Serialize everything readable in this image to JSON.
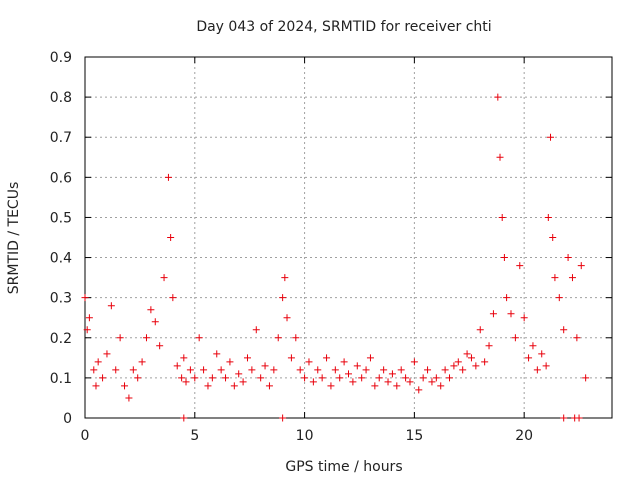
{
  "chart_data": {
    "type": "scatter",
    "title": "Day 043 of 2024, SRMTID for receiver chti",
    "xlabel": "GPS time / hours",
    "ylabel": "SRMTID / TECUs",
    "xlim": [
      0,
      24
    ],
    "ylim": [
      0,
      0.9
    ],
    "xticks": [
      0,
      5,
      10,
      15,
      20
    ],
    "xtick_labels": [
      "0",
      "5",
      "10",
      "15",
      "20"
    ],
    "yticks": [
      0,
      0.1,
      0.2,
      0.3,
      0.4,
      0.5,
      0.6,
      0.7,
      0.8,
      0.9
    ],
    "ytick_labels": [
      "0",
      "0.1",
      "0.2",
      "0.3",
      "0.4",
      "0.5",
      "0.6",
      "0.7",
      "0.8",
      "0.9"
    ],
    "grid": true,
    "marker": "+",
    "color": "#e8000b",
    "series": [
      {
        "name": "SRMTID",
        "x": [
          0.0,
          0.1,
          0.2,
          0.4,
          0.5,
          0.6,
          0.8,
          1.0,
          1.2,
          1.4,
          1.6,
          1.8,
          2.0,
          2.2,
          2.4,
          2.6,
          2.8,
          3.0,
          3.2,
          3.4,
          3.6,
          3.8,
          3.9,
          4.0,
          4.2,
          4.4,
          4.5,
          4.6,
          4.8,
          5.0,
          5.2,
          5.4,
          5.6,
          5.8,
          6.0,
          6.2,
          6.4,
          6.6,
          6.8,
          7.0,
          7.2,
          7.4,
          7.6,
          7.8,
          8.0,
          8.2,
          8.4,
          8.6,
          8.8,
          9.0,
          9.1,
          9.2,
          9.4,
          9.6,
          9.8,
          10.0,
          10.2,
          10.4,
          10.6,
          10.8,
          11.0,
          11.2,
          11.4,
          11.6,
          11.8,
          12.0,
          12.2,
          12.4,
          12.6,
          12.8,
          13.0,
          13.2,
          13.4,
          13.6,
          13.8,
          14.0,
          14.2,
          14.4,
          14.6,
          14.8,
          15.0,
          15.2,
          15.4,
          15.6,
          15.8,
          16.0,
          16.2,
          16.4,
          16.6,
          16.8,
          17.0,
          17.2,
          17.4,
          17.6,
          17.8,
          18.0,
          18.2,
          18.4,
          18.6,
          18.8,
          18.9,
          19.0,
          19.1,
          19.2,
          19.4,
          19.6,
          19.8,
          20.0,
          20.2,
          20.4,
          20.6,
          20.8,
          21.0,
          21.1,
          21.2,
          21.3,
          21.4,
          21.6,
          21.8,
          22.0,
          22.2,
          22.4,
          22.6,
          22.8,
          4.5,
          9.0,
          21.8,
          22.3,
          22.5
        ],
        "y": [
          0.3,
          0.22,
          0.25,
          0.12,
          0.08,
          0.14,
          0.1,
          0.16,
          0.28,
          0.12,
          0.2,
          0.08,
          0.05,
          0.12,
          0.1,
          0.14,
          0.2,
          0.27,
          0.24,
          0.18,
          0.35,
          0.6,
          0.45,
          0.3,
          0.13,
          0.1,
          0.15,
          0.09,
          0.12,
          0.1,
          0.2,
          0.12,
          0.08,
          0.1,
          0.16,
          0.12,
          0.1,
          0.14,
          0.08,
          0.11,
          0.09,
          0.15,
          0.12,
          0.22,
          0.1,
          0.13,
          0.08,
          0.12,
          0.2,
          0.3,
          0.35,
          0.25,
          0.15,
          0.2,
          0.12,
          0.1,
          0.14,
          0.09,
          0.12,
          0.1,
          0.15,
          0.08,
          0.12,
          0.1,
          0.14,
          0.11,
          0.09,
          0.13,
          0.1,
          0.12,
          0.15,
          0.08,
          0.1,
          0.12,
          0.09,
          0.11,
          0.08,
          0.12,
          0.1,
          0.09,
          0.14,
          0.07,
          0.1,
          0.12,
          0.09,
          0.1,
          0.08,
          0.12,
          0.1,
          0.13,
          0.14,
          0.12,
          0.16,
          0.15,
          0.13,
          0.22,
          0.14,
          0.18,
          0.26,
          0.8,
          0.65,
          0.5,
          0.4,
          0.3,
          0.26,
          0.2,
          0.38,
          0.25,
          0.15,
          0.18,
          0.12,
          0.16,
          0.13,
          0.5,
          0.7,
          0.45,
          0.35,
          0.3,
          0.22,
          0.4,
          0.35,
          0.2,
          0.38,
          0.1,
          0.0,
          0.0,
          0.0,
          0.0,
          0.0
        ]
      }
    ]
  }
}
